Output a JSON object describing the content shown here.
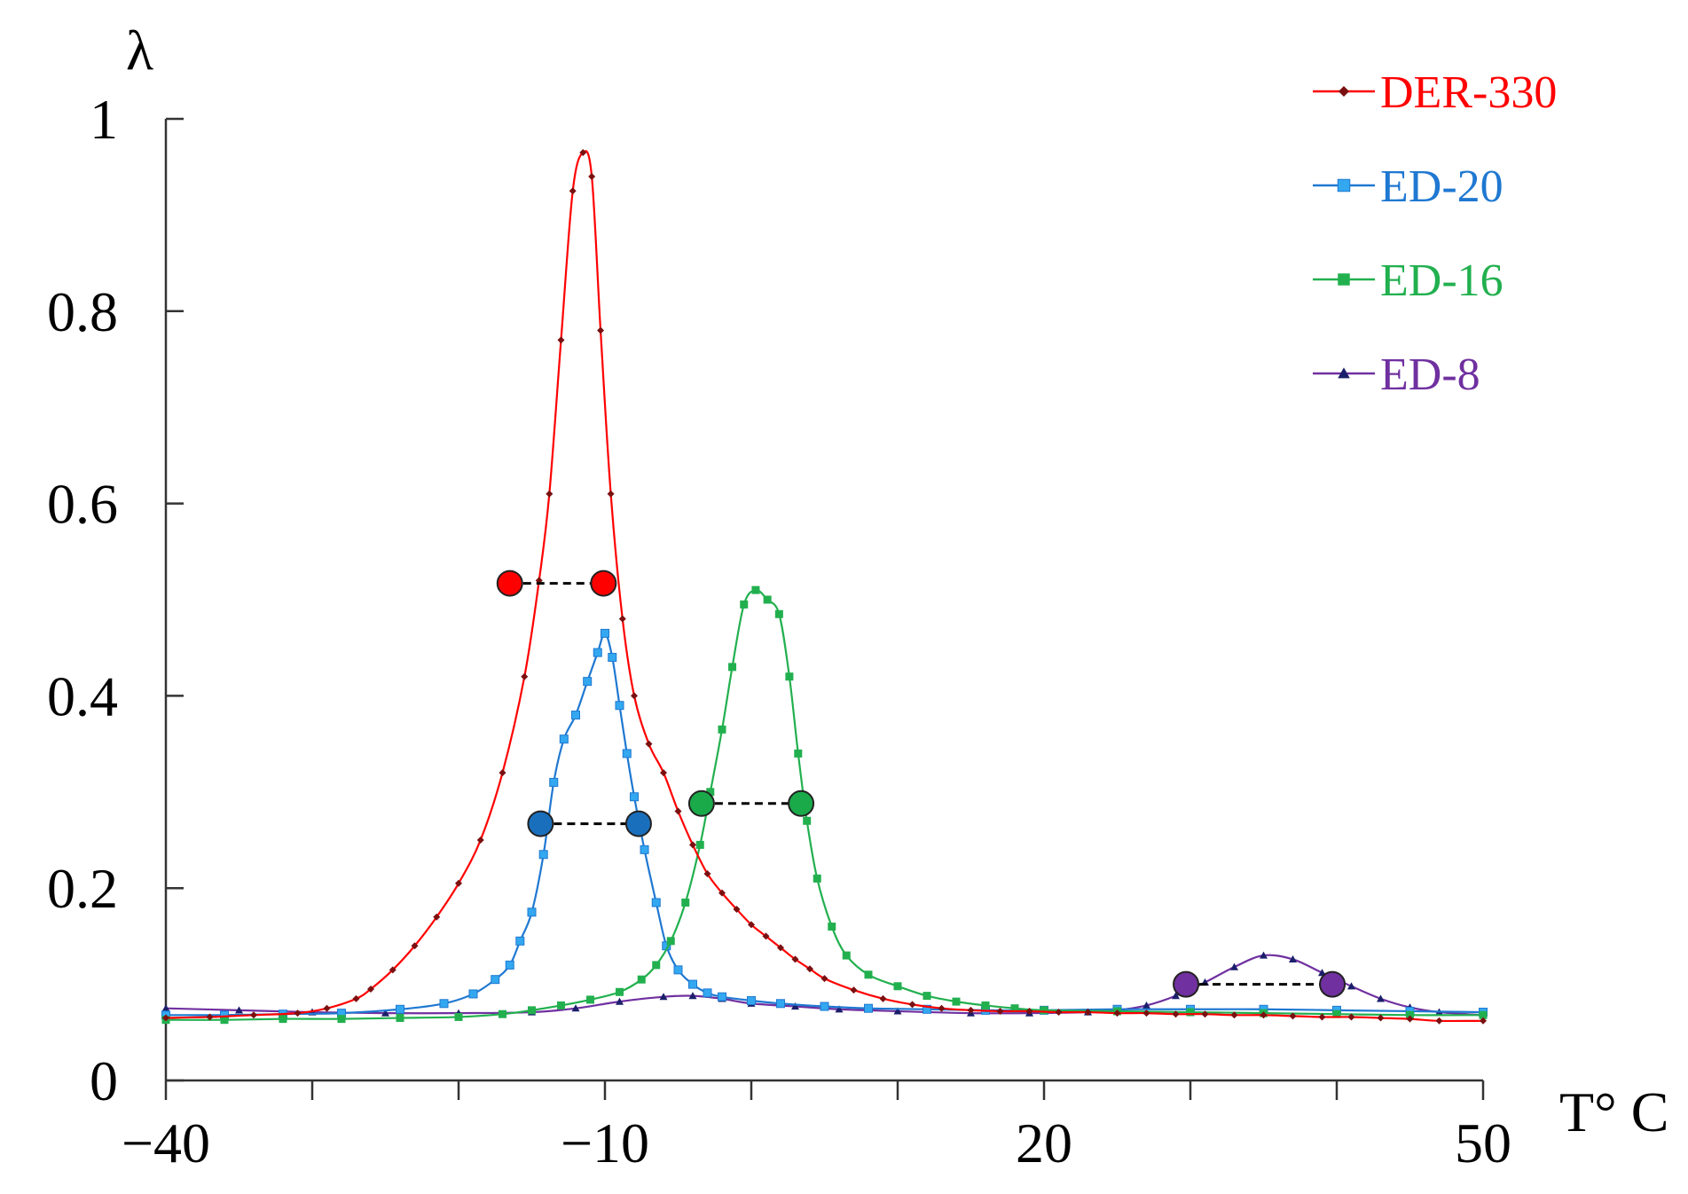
{
  "chart_data": {
    "type": "line",
    "ylabel": "λ",
    "xlabel": "T° C",
    "xlim": [
      -40,
      50
    ],
    "ylim": [
      0,
      1
    ],
    "x_ticks": [
      -40,
      -10,
      20,
      50
    ],
    "x_tick_labels": [
      "−40",
      "−10",
      "20",
      "50"
    ],
    "x_minor_ticks": [
      -30,
      -20,
      0,
      10,
      30,
      40
    ],
    "y_ticks": [
      0,
      0.2,
      0.4,
      0.6,
      0.8,
      1
    ],
    "y_tick_labels": [
      "0",
      "0.2",
      "0.4",
      "0.6",
      "0.8",
      "1"
    ],
    "grid": false,
    "legend_position": "top-right",
    "series": [
      {
        "name": "DER-330",
        "color": "#ff0000",
        "marker": "diamond",
        "x": [
          -40,
          -37,
          -34,
          -31,
          -29,
          -27,
          -26,
          -24.5,
          -23,
          -21.5,
          -20,
          -18.5,
          -17,
          -15.5,
          -14.5,
          -13.8,
          -13,
          -12.2,
          -11.5,
          -10.9,
          -10.3,
          -9.6,
          -8.8,
          -8,
          -7,
          -6,
          -5,
          -4,
          -3,
          -2,
          -1,
          0,
          1,
          2,
          3,
          4,
          5,
          7,
          9,
          11,
          13,
          15,
          17,
          19,
          21,
          23,
          25,
          27,
          29,
          31,
          33,
          35,
          37,
          39,
          41,
          43,
          45,
          47,
          50
        ],
        "y": [
          0.065,
          0.066,
          0.068,
          0.07,
          0.075,
          0.085,
          0.095,
          0.115,
          0.14,
          0.17,
          0.205,
          0.25,
          0.32,
          0.42,
          0.52,
          0.61,
          0.77,
          0.925,
          0.965,
          0.94,
          0.78,
          0.61,
          0.48,
          0.4,
          0.35,
          0.32,
          0.28,
          0.245,
          0.215,
          0.195,
          0.178,
          0.162,
          0.15,
          0.138,
          0.126,
          0.116,
          0.106,
          0.094,
          0.085,
          0.079,
          0.075,
          0.073,
          0.072,
          0.072,
          0.071,
          0.071,
          0.07,
          0.07,
          0.069,
          0.069,
          0.068,
          0.068,
          0.067,
          0.066,
          0.066,
          0.065,
          0.064,
          0.062,
          0.062
        ]
      },
      {
        "name": "ED-20",
        "color": "#1f78d1",
        "marker": "square",
        "x": [
          -40,
          -36,
          -32,
          -28,
          -24,
          -21,
          -19,
          -17.5,
          -16.5,
          -15.8,
          -15,
          -14.2,
          -13.5,
          -12.8,
          -12,
          -11.2,
          -10.5,
          -10,
          -9.5,
          -9,
          -8.5,
          -8,
          -7.3,
          -6.5,
          -5.8,
          -5,
          -4,
          -3,
          -2,
          0,
          2,
          5,
          8,
          12,
          16,
          20,
          25,
          30,
          35,
          40,
          45,
          50
        ],
        "y": [
          0.068,
          0.068,
          0.069,
          0.07,
          0.074,
          0.08,
          0.09,
          0.105,
          0.12,
          0.145,
          0.175,
          0.235,
          0.31,
          0.355,
          0.38,
          0.415,
          0.445,
          0.465,
          0.44,
          0.39,
          0.34,
          0.295,
          0.24,
          0.185,
          0.14,
          0.115,
          0.1,
          0.091,
          0.087,
          0.083,
          0.08,
          0.077,
          0.075,
          0.074,
          0.073,
          0.073,
          0.074,
          0.074,
          0.074,
          0.073,
          0.072,
          0.071
        ]
      },
      {
        "name": "ED-16",
        "color": "#22b04f",
        "marker": "square",
        "x": [
          -40,
          -36,
          -32,
          -28,
          -24,
          -20,
          -17,
          -15,
          -13,
          -11,
          -9,
          -7.5,
          -6.5,
          -5.5,
          -4.5,
          -3.5,
          -2.8,
          -2,
          -1.3,
          -0.5,
          0.3,
          1.1,
          1.9,
          2.6,
          3.2,
          3.8,
          4.5,
          5.5,
          6.5,
          8,
          10,
          12,
          14,
          16,
          18,
          20,
          25,
          30,
          35,
          40,
          45,
          50
        ],
        "y": [
          0.063,
          0.063,
          0.064,
          0.064,
          0.065,
          0.066,
          0.069,
          0.073,
          0.078,
          0.084,
          0.092,
          0.105,
          0.12,
          0.145,
          0.185,
          0.245,
          0.3,
          0.365,
          0.43,
          0.495,
          0.51,
          0.5,
          0.485,
          0.42,
          0.34,
          0.27,
          0.21,
          0.16,
          0.13,
          0.11,
          0.098,
          0.088,
          0.082,
          0.078,
          0.075,
          0.073,
          0.072,
          0.071,
          0.07,
          0.069,
          0.068,
          0.068
        ]
      },
      {
        "name": "ED-8",
        "color": "#7030a0",
        "marker": "triangle",
        "x": [
          -40,
          -35,
          -30,
          -25,
          -20,
          -15,
          -12,
          -9,
          -6,
          -4,
          -2,
          0,
          3,
          6,
          10,
          15,
          19,
          23,
          25,
          27,
          29,
          31,
          33,
          35,
          37,
          39,
          41,
          43,
          45,
          47,
          50
        ],
        "y": [
          0.075,
          0.073,
          0.071,
          0.07,
          0.07,
          0.071,
          0.075,
          0.082,
          0.087,
          0.088,
          0.085,
          0.08,
          0.077,
          0.074,
          0.072,
          0.07,
          0.07,
          0.071,
          0.073,
          0.078,
          0.088,
          0.102,
          0.118,
          0.13,
          0.126,
          0.112,
          0.098,
          0.085,
          0.076,
          0.071,
          0.068
        ]
      }
    ],
    "half_width_markers": [
      {
        "series": "DER-330",
        "color": "#ff0000",
        "x1": -16.5,
        "x2": -10.1,
        "y": 0.517
      },
      {
        "series": "ED-20",
        "color": "#1a6fbd",
        "x1": -14.4,
        "x2": -7.7,
        "y": 0.267
      },
      {
        "series": "ED-16",
        "color": "#1aaa4a",
        "x1": -3.4,
        "x2": 3.4,
        "y": 0.288
      },
      {
        "series": "ED-8",
        "color": "#7030a0",
        "x1": 29.7,
        "x2": 39.7,
        "y": 0.1
      }
    ]
  }
}
